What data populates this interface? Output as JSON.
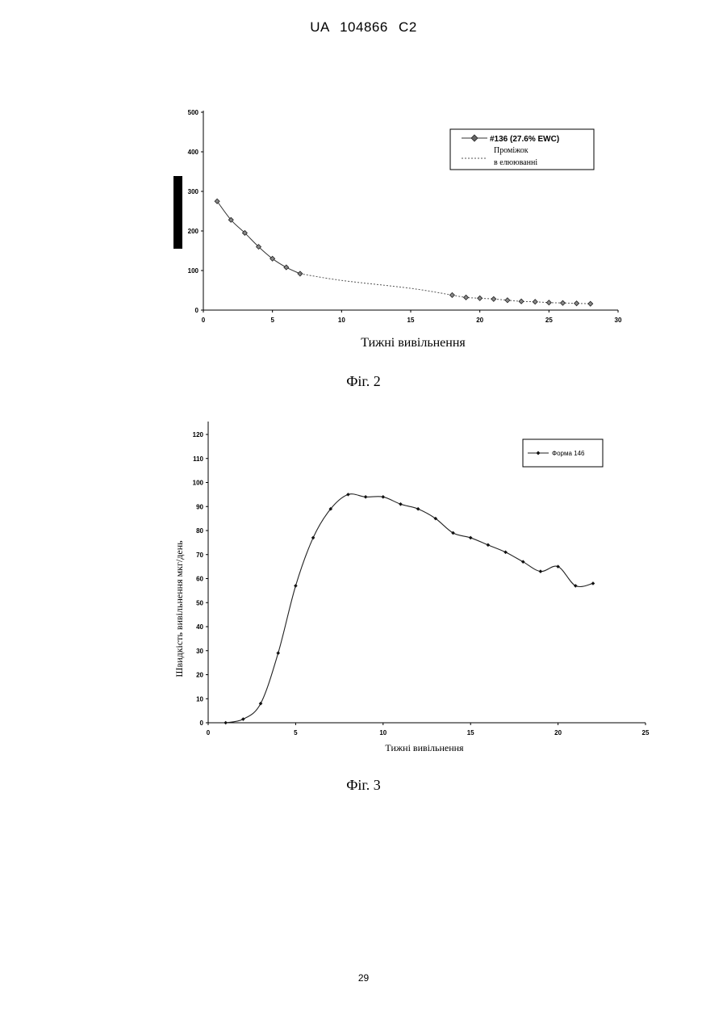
{
  "header": {
    "text": "UA   104866   C2"
  },
  "page_number": "29",
  "figures": {
    "fig2": {
      "caption": "Фіг. 2"
    },
    "fig3": {
      "caption": "Фіг. 3"
    }
  },
  "chart_data": [
    {
      "type": "line",
      "title": "",
      "xlabel": "Тижні вивільнення",
      "ylabel": "",
      "xlim": [
        0,
        30
      ],
      "ylim": [
        0,
        500
      ],
      "xticks": [
        0,
        5,
        10,
        15,
        20,
        25,
        30
      ],
      "yticks": [
        0,
        100,
        200,
        300,
        400,
        500
      ],
      "grid": false,
      "legend_position": "top-right",
      "series": [
        {
          "name": "#136 (27.6% EWC)",
          "style": "solid-markers",
          "x": [
            1,
            2,
            3,
            4,
            5,
            6,
            7
          ],
          "values": [
            275,
            228,
            195,
            160,
            130,
            108,
            92
          ]
        },
        {
          "name": "Проміжок в елююванні",
          "style": "dashed",
          "x": [
            7,
            10,
            15,
            18
          ],
          "values": [
            92,
            75,
            55,
            38
          ]
        },
        {
          "name": "",
          "style": "dashed-markers",
          "x": [
            18,
            19,
            20,
            21,
            22,
            23,
            24,
            25,
            26,
            27,
            28
          ],
          "values": [
            38,
            32,
            30,
            28,
            25,
            22,
            21,
            19,
            18,
            17,
            16
          ]
        }
      ],
      "legend_line1": "Проміжок",
      "legend_line2": "в елююванні"
    },
    {
      "type": "line",
      "title": "",
      "xlabel": "Тижні вивільнення",
      "ylabel": "Швидкість вивільнення мкг/день",
      "xlim": [
        0,
        25
      ],
      "ylim": [
        0,
        120
      ],
      "xticks": [
        0,
        5,
        10,
        15,
        20,
        25
      ],
      "yticks": [
        0,
        10,
        20,
        30,
        40,
        50,
        60,
        70,
        80,
        90,
        100,
        110,
        120
      ],
      "grid": false,
      "legend_position": "top-right",
      "series": [
        {
          "name": "Форма 146",
          "style": "smooth-markers",
          "x": [
            1,
            2,
            3,
            4,
            5,
            6,
            7,
            8,
            9,
            10,
            11,
            12,
            13,
            14,
            15,
            16,
            17,
            18,
            19,
            20,
            21,
            22
          ],
          "values": [
            0,
            1.5,
            8,
            29,
            57,
            77,
            89,
            95,
            94,
            94,
            91,
            89,
            85,
            79,
            77,
            74,
            71,
            67,
            63,
            65,
            57,
            58
          ]
        }
      ]
    }
  ]
}
